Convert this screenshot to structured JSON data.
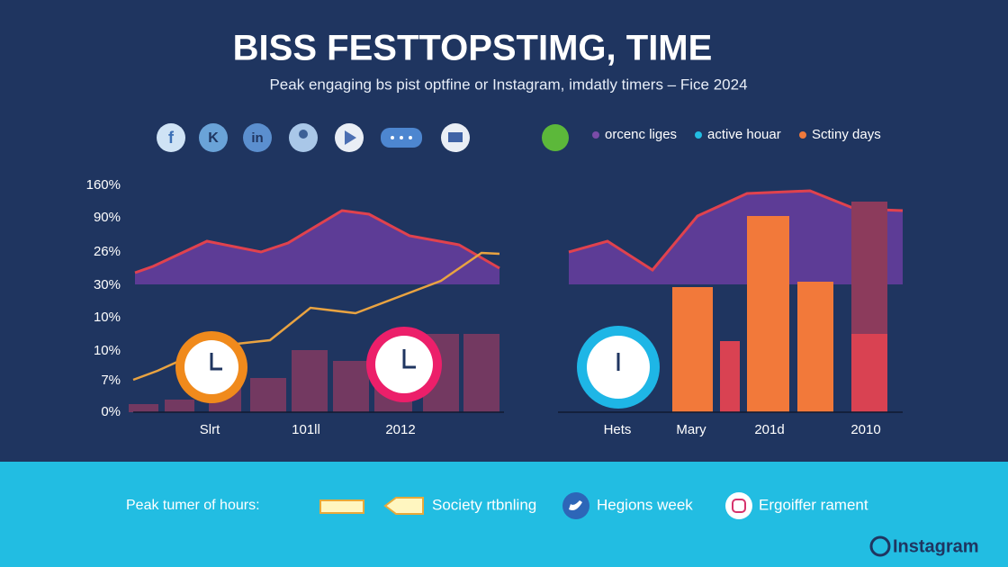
{
  "header": {
    "title": "BISS FESTTOPSTIMG, TIME",
    "subtitle": "Peak engaging bs pist optfine or Instagram, imdatly timers – Fice 2024"
  },
  "icons": [
    "f",
    "K",
    "in"
  ],
  "legend": {
    "items": [
      "orcenc liges",
      "active houar",
      "Sctiny days"
    ]
  },
  "left_chart": {
    "y_labels": [
      "160%",
      "90%",
      "26%",
      "30%",
      "10%",
      "10%",
      "7%",
      "0%"
    ],
    "x_labels": [
      "Slrt",
      "101ll",
      "2012"
    ]
  },
  "right_chart": {
    "x_labels": [
      "Hets",
      "Mary",
      "201d",
      "2010"
    ]
  },
  "footer": {
    "label": "Peak tumer of hours:",
    "items": [
      "Society rtbnling",
      "Hegions week",
      "Ergoiffer rament"
    ],
    "brand": "Instagram"
  }
}
